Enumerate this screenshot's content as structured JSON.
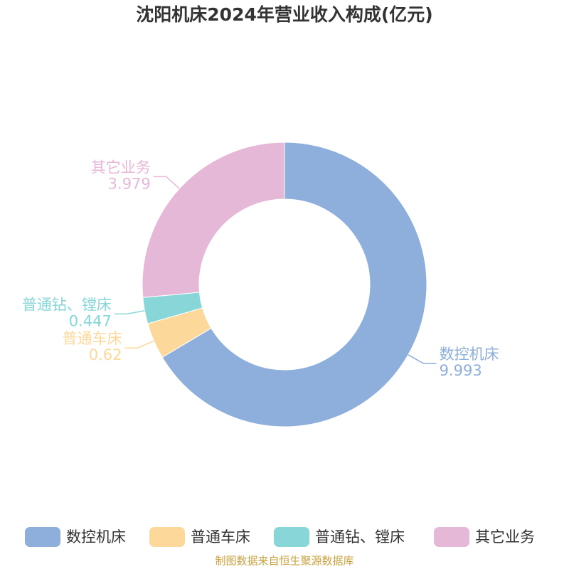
{
  "chart_data": {
    "type": "donut",
    "title": "沈阳机床2024年营业收入构成(亿元)",
    "categories": [
      "数控机床",
      "普通车床",
      "普通钻、镗床",
      "其它业务"
    ],
    "values": [
      9.993,
      0.62,
      0.447,
      3.979
    ],
    "colors": [
      "#8eaedb",
      "#fdd89b",
      "#88d6d8",
      "#e6b8d8"
    ],
    "source": "制图数据来自恒生聚源数据库"
  }
}
